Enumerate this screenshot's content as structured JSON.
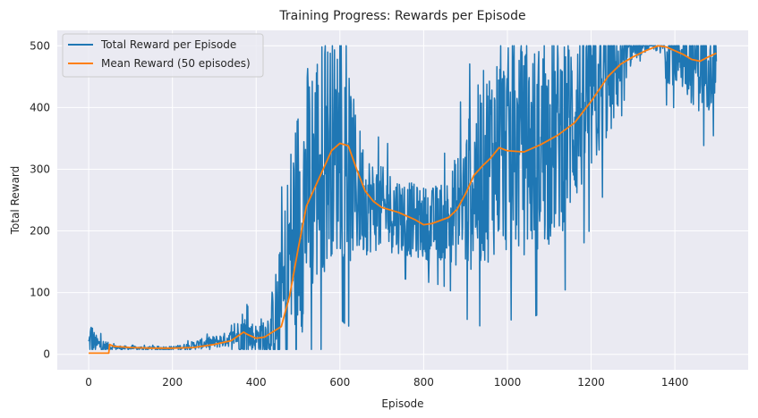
{
  "chart_data": {
    "type": "line",
    "title": "Training Progress: Rewards per Episode",
    "xlabel": "Episode",
    "ylabel": "Total Reward",
    "xlim": [
      -75,
      1575
    ],
    "ylim": [
      -25,
      525
    ],
    "xticks": [
      0,
      200,
      400,
      600,
      800,
      1000,
      1200,
      1400
    ],
    "yticks": [
      0,
      100,
      200,
      300,
      400,
      500
    ],
    "grid": true,
    "legend_position": "top-left",
    "background": "#eaeaf2",
    "series": [
      {
        "name": "Total Reward per Episode",
        "color": "#1f77b4",
        "style": "noisy",
        "x": [
          0,
          5,
          15,
          30,
          50,
          60,
          100,
          150,
          200,
          230,
          260,
          300,
          330,
          350,
          365,
          380,
          400,
          430,
          460,
          480,
          500,
          520,
          540,
          560,
          580,
          600,
          620,
          640,
          660,
          680,
          700,
          740,
          780,
          820,
          860,
          900,
          940,
          980,
          1020,
          1060,
          1100,
          1140,
          1180,
          1220,
          1260,
          1280,
          1300,
          1340,
          1360,
          1380,
          1400,
          1420,
          1440,
          1460,
          1480,
          1499
        ],
        "center": [
          15,
          25,
          18,
          14,
          12,
          11,
          10,
          10,
          10,
          12,
          16,
          20,
          24,
          28,
          35,
          30,
          25,
          35,
          70,
          160,
          220,
          260,
          300,
          320,
          340,
          330,
          300,
          270,
          250,
          240,
          235,
          228,
          215,
          212,
          220,
          250,
          300,
          335,
          325,
          332,
          345,
          370,
          400,
          430,
          460,
          480,
          495,
          500,
          500,
          500,
          495,
          490,
          485,
          480,
          485,
          490
        ],
        "spread": [
          20,
          35,
          15,
          12,
          6,
          4,
          3,
          3,
          3,
          5,
          8,
          10,
          12,
          14,
          40,
          30,
          25,
          40,
          120,
          180,
          200,
          210,
          210,
          200,
          180,
          170,
          160,
          120,
          90,
          75,
          70,
          65,
          60,
          60,
          70,
          120,
          160,
          170,
          170,
          170,
          170,
          165,
          140,
          120,
          80,
          40,
          20,
          5,
          10,
          60,
          60,
          70,
          80,
          90,
          90,
          80
        ]
      },
      {
        "name": "Mean Reward (50 episodes)",
        "color": "#ff7f0e",
        "style": "smooth",
        "x": [
          0,
          48,
          50,
          60,
          100,
          150,
          200,
          250,
          300,
          340,
          370,
          380,
          400,
          420,
          460,
          480,
          500,
          520,
          540,
          560,
          580,
          600,
          620,
          640,
          660,
          680,
          700,
          740,
          780,
          800,
          820,
          860,
          880,
          900,
          920,
          940,
          960,
          980,
          1000,
          1040,
          1080,
          1120,
          1160,
          1200,
          1240,
          1270,
          1300,
          1330,
          1360,
          1380,
          1400,
          1420,
          1440,
          1460,
          1480,
          1499
        ],
        "y": [
          2,
          2,
          16,
          13,
          11,
          10,
          10,
          11,
          16,
          22,
          36,
          32,
          26,
          28,
          45,
          95,
          170,
          240,
          270,
          300,
          330,
          342,
          338,
          300,
          265,
          248,
          238,
          230,
          218,
          210,
          212,
          222,
          235,
          260,
          290,
          305,
          318,
          335,
          330,
          328,
          340,
          355,
          375,
          410,
          450,
          470,
          482,
          492,
          500,
          498,
          492,
          486,
          478,
          475,
          482,
          488
        ]
      }
    ]
  }
}
